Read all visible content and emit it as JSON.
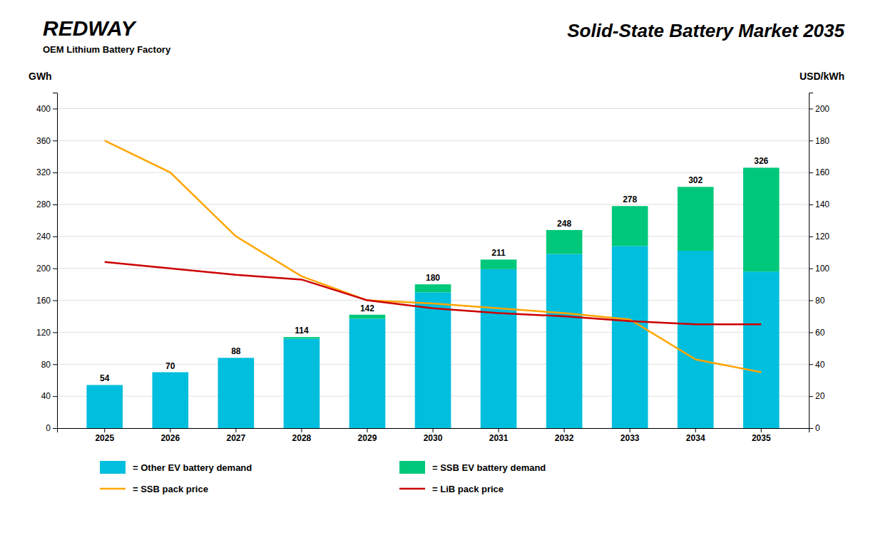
{
  "chart_data": {
    "type": "bar",
    "title": "Solid-State Battery Market 2035",
    "annotations": [
      "REDWAY",
      "OEM Lithium Battery Factory"
    ],
    "ylabel": "GWh",
    "y2label": "USD/kWh",
    "categories": [
      "2025",
      "2026",
      "2027",
      "2028",
      "2029",
      "2030",
      "2031",
      "2032",
      "2033",
      "2034",
      "2035"
    ],
    "stacked": true,
    "series": [
      {
        "name": "= Other EV battery demand",
        "type": "bar",
        "color": "#00BEDD",
        "values": [
          54,
          70,
          88,
          112,
          137,
          170,
          199,
          218,
          228,
          222,
          196
        ]
      },
      {
        "name": "= SSB EV battery demand",
        "type": "bar",
        "color": "#00C87A",
        "values": [
          0,
          0,
          0,
          2,
          5,
          10,
          12,
          30,
          50,
          80,
          130
        ]
      },
      {
        "name": "= SSB pack price",
        "type": "line",
        "axis": "y2",
        "color": "#FFA500",
        "values": [
          180,
          160,
          120,
          95,
          80,
          78,
          75,
          72,
          68,
          43,
          35
        ]
      },
      {
        "name": "= LiB pack price",
        "type": "line",
        "axis": "y2",
        "color": "#CC0000",
        "values": [
          104,
          100,
          96,
          93,
          80,
          75,
          72,
          70,
          67,
          65,
          65
        ]
      }
    ],
    "totals": [
      54,
      70,
      88,
      114,
      142,
      180,
      211,
      248,
      278,
      302,
      326
    ],
    "ylim": [
      0,
      420
    ],
    "yticks": [
      0,
      40,
      80,
      120,
      160,
      200,
      240,
      280,
      320,
      360,
      400
    ],
    "y2lim": [
      0,
      210
    ],
    "y2ticks": [
      0,
      20,
      40,
      60,
      80,
      100,
      120,
      140,
      160,
      180,
      200
    ],
    "grid": true,
    "legend": "bottom"
  }
}
